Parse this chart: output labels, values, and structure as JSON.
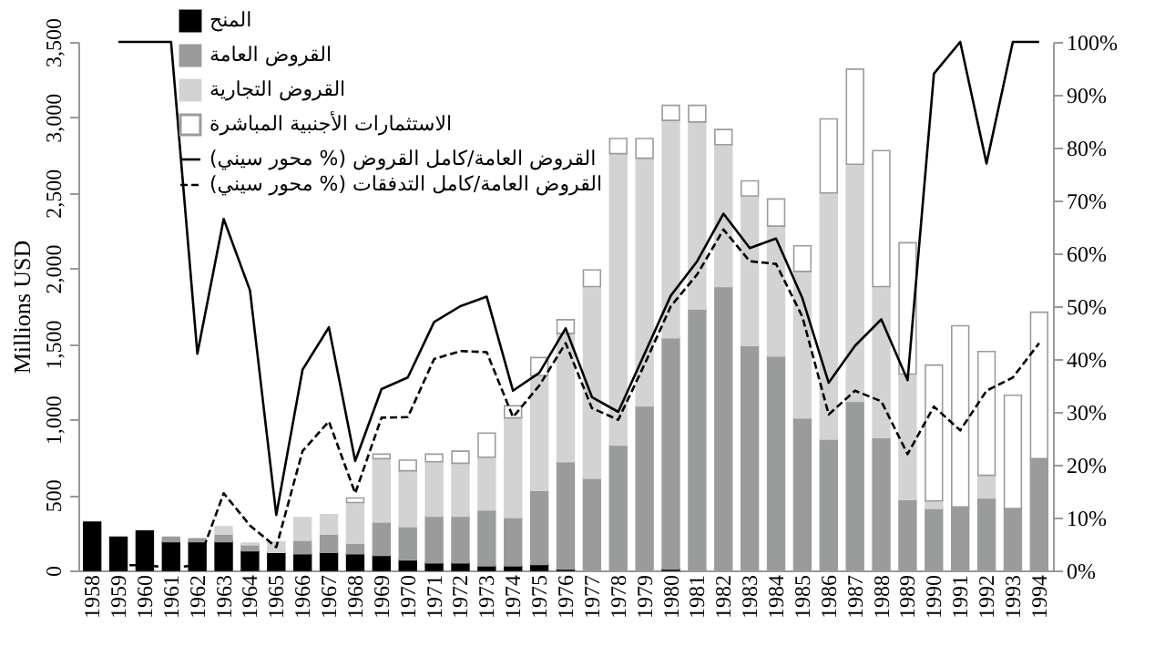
{
  "chart_data": {
    "type": "bar",
    "stacked": true,
    "ylabel": "Millions USD",
    "legend": "top left",
    "grid": false,
    "categories": [
      "1958",
      "1959",
      "1960",
      "1961",
      "1962",
      "1963",
      "1964",
      "1965",
      "1966",
      "1967",
      "1968",
      "1969",
      "1970",
      "1971",
      "1972",
      "1973",
      "1974",
      "1975",
      "1976",
      "1977",
      "1978",
      "1979",
      "1980",
      "1981",
      "1982",
      "1983",
      "1984",
      "1985",
      "1986",
      "1987",
      "1988",
      "1989",
      "1990",
      "1991",
      "1992",
      "1993",
      "1994"
    ],
    "ylim": [
      0,
      3500
    ],
    "yticks": [
      0,
      500,
      {
        "value": 1000,
        "label": "1,000"
      },
      {
        "value": 1500,
        "label": "1,500"
      },
      {
        "value": 2000,
        "label": "2,000"
      },
      {
        "value": 2500,
        "label": "2,500"
      },
      {
        "value": 3000,
        "label": "3,000"
      },
      {
        "value": 3500,
        "label": "3,500"
      }
    ],
    "y2lim": [
      0,
      100
    ],
    "y2ticks": [
      {
        "value": 0,
        "label": "0%"
      },
      {
        "value": 10,
        "label": "10%"
      },
      {
        "value": 20,
        "label": "20%"
      },
      {
        "value": 30,
        "label": "30%"
      },
      {
        "value": 40,
        "label": "40%"
      },
      {
        "value": 50,
        "label": "50%"
      },
      {
        "value": 60,
        "label": "60%"
      },
      {
        "value": 70,
        "label": "70%"
      },
      {
        "value": 80,
        "label": "80%"
      },
      {
        "value": 90,
        "label": "90%"
      },
      {
        "value": 100,
        "label": "100%"
      }
    ],
    "series": [
      {
        "name": "المنح",
        "color": "#000000",
        "values": [
          320,
          220,
          260,
          190,
          190,
          190,
          130,
          120,
          110,
          120,
          110,
          100,
          70,
          50,
          50,
          30,
          30,
          40,
          10,
          null,
          null,
          null,
          10,
          null,
          null,
          null,
          null,
          null,
          null,
          null,
          null,
          null,
          null,
          null,
          null,
          null,
          null
        ]
      },
      {
        "name": "القروض العامة",
        "color": "#9a9c9c",
        "values": [
          null,
          null,
          null,
          30,
          20,
          50,
          40,
          null,
          90,
          120,
          70,
          220,
          220,
          310,
          310,
          370,
          320,
          490,
          710,
          610,
          830,
          1090,
          1530,
          1730,
          1880,
          1490,
          1420,
          1010,
          870,
          1120,
          880,
          470,
          410,
          420,
          480,
          410,
          740
        ]
      },
      {
        "name": "القروض التجارية",
        "color": "#d3d3d3",
        "values": [
          null,
          null,
          null,
          null,
          null,
          50,
          10,
          70,
          150,
          130,
          270,
          420,
          370,
          360,
          350,
          350,
          660,
          760,
          850,
          1270,
          1930,
          1640,
          1440,
          1240,
          940,
          990,
          860,
          970,
          1630,
          1570,
          1000,
          830,
          50,
          null,
          150,
          null,
          null
        ]
      },
      {
        "name": "الاستثمارات الأجنبية المباشرة",
        "color": "#ffffff",
        "values": [
          null,
          null,
          null,
          null,
          null,
          null,
          null,
          null,
          null,
          null,
          30,
          30,
          70,
          50,
          80,
          160,
          80,
          120,
          90,
          110,
          100,
          130,
          100,
          110,
          100,
          100,
          180,
          170,
          490,
          630,
          900,
          870,
          900,
          1200,
          820,
          750,
          970
        ]
      },
      {
        "name": "القروض العامة/كامل القروض (% محور سيني)",
        "type": "line",
        "axis": "y2",
        "color": "#000000",
        "line_style": "solid",
        "values": [
          null,
          100,
          100,
          100,
          41,
          66.5,
          53,
          10.5,
          38,
          46,
          20.7,
          34.3,
          36.5,
          47,
          50,
          51.8,
          34,
          37.4,
          45.8,
          32.8,
          30,
          41,
          52,
          58.5,
          67.5,
          61,
          62.8,
          51.5,
          35.5,
          42.5,
          47.5,
          36,
          94,
          100,
          77,
          100,
          100
        ]
      },
      {
        "name": "القروض العامة/كامل التدفقات (% محور سيني)",
        "type": "line",
        "axis": "y2",
        "color": "#000000",
        "line_style": "dashed",
        "values": [
          null,
          1,
          1,
          0.5,
          1,
          14.6,
          8.5,
          4.4,
          22.6,
          28.2,
          14.6,
          28.9,
          29,
          40,
          41.5,
          41.3,
          29,
          35,
          43,
          30.7,
          28.5,
          39,
          50,
          56,
          64.5,
          58.5,
          58,
          48,
          29.5,
          34,
          32,
          22,
          31,
          26.5,
          34,
          36.5,
          43
        ]
      }
    ]
  }
}
